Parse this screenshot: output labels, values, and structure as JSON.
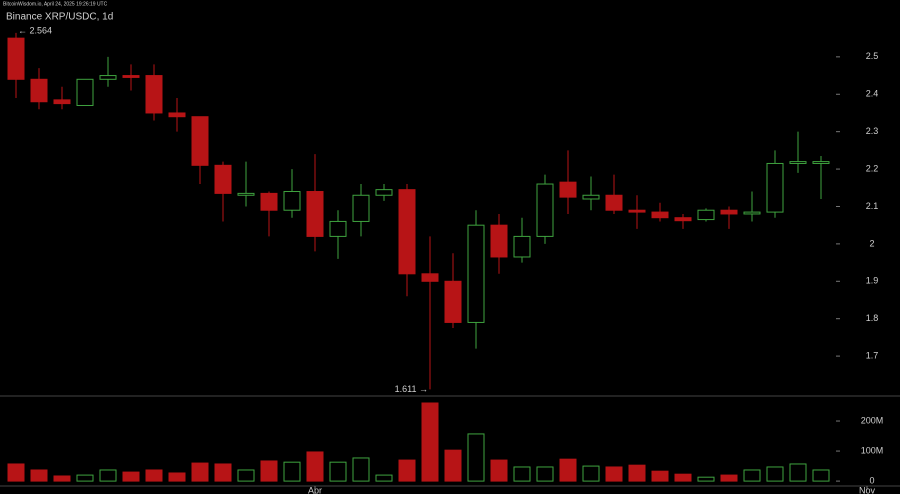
{
  "chart_data": {
    "type": "candlestick",
    "title": "Binance XRP/USDC, 1d",
    "watermark": "BitcoinWisdom.io, April 24, 2025 19:26:19 UTC",
    "up_color": "#3fa33f",
    "down_color": "#b71416",
    "open": [
      2.55,
      2.44,
      2.385,
      2.37,
      2.44,
      2.45,
      2.45,
      2.35,
      2.34,
      2.21,
      2.13,
      2.135,
      2.09,
      2.14,
      2.02,
      2.06,
      2.13,
      2.145,
      1.92,
      1.9,
      1.79,
      2.05,
      1.965,
      2.02,
      2.165,
      2.12,
      2.13,
      2.09,
      2.085,
      2.07,
      2.065,
      2.09,
      2.08,
      2.085,
      2.215,
      2.215
    ],
    "high": [
      2.564,
      2.47,
      2.42,
      2.44,
      2.5,
      2.48,
      2.48,
      2.39,
      2.34,
      2.22,
      2.22,
      2.14,
      2.2,
      2.24,
      2.09,
      2.16,
      2.16,
      2.16,
      2.02,
      1.975,
      2.09,
      2.08,
      2.07,
      2.185,
      2.25,
      2.18,
      2.185,
      2.13,
      2.11,
      2.08,
      2.095,
      2.1,
      2.14,
      2.25,
      2.3,
      2.235
    ],
    "low": [
      2.39,
      2.36,
      2.36,
      2.37,
      2.42,
      2.41,
      2.33,
      2.3,
      2.16,
      2.06,
      2.1,
      2.02,
      2.07,
      1.98,
      1.96,
      2.02,
      2.115,
      1.86,
      1.611,
      1.775,
      1.72,
      1.92,
      1.95,
      2.0,
      2.08,
      2.09,
      2.08,
      2.04,
      2.06,
      2.04,
      2.06,
      2.04,
      2.06,
      2.07,
      2.19,
      2.12
    ],
    "close": [
      2.44,
      2.38,
      2.375,
      2.44,
      2.45,
      2.445,
      2.35,
      2.34,
      2.21,
      2.135,
      2.135,
      2.09,
      2.14,
      2.02,
      2.06,
      2.13,
      2.145,
      1.92,
      1.9,
      1.79,
      2.05,
      1.965,
      2.02,
      2.16,
      2.125,
      2.13,
      2.09,
      2.085,
      2.07,
      2.062,
      2.09,
      2.08,
      2.085,
      2.215,
      2.22,
      2.22
    ],
    "volume": [
      57,
      37,
      17,
      20,
      37,
      30,
      37,
      27,
      60,
      57,
      37,
      67,
      63,
      97,
      63,
      77,
      20,
      70,
      260,
      103,
      157,
      70,
      47,
      47,
      73,
      50,
      47,
      53,
      33,
      23,
      13,
      20,
      37,
      47,
      57,
      37
    ],
    "ylim": [
      1.596,
      2.652
    ],
    "yticks": [
      1.7,
      1.8,
      1.9,
      2,
      2.1,
      2.2,
      2.3,
      2.4,
      2.5
    ],
    "volume_lim": [
      -13,
      270
    ],
    "volume_ticks": [
      0,
      {
        "value": 100,
        "label": "100M"
      },
      {
        "value": 200,
        "label": "200M"
      }
    ],
    "xticks": [
      {
        "value": 13,
        "label": "Apr"
      },
      {
        "value": 37,
        "label": "Nov"
      }
    ],
    "high_label": {
      "value": 2.564,
      "label": "← 2.564"
    },
    "low_label": {
      "value": 1.611,
      "label": "1.611 →"
    }
  }
}
